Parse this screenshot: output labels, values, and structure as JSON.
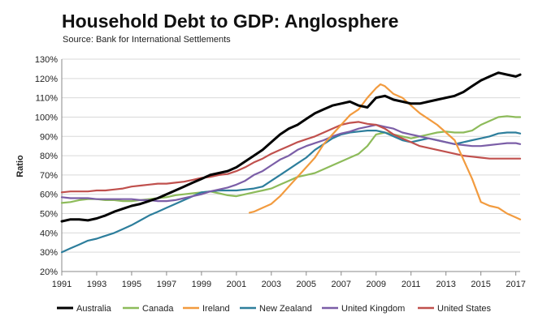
{
  "chart_data": {
    "type": "line",
    "title": "Household Debt to GDP: Anglosphere",
    "subtitle": "Source: Bank for International Settlements",
    "xlabel": "",
    "ylabel": "Ratio",
    "xlim": [
      1991,
      2017.25
    ],
    "ylim": [
      20,
      130
    ],
    "x_ticks": [
      "1991",
      "1993",
      "1995",
      "1997",
      "1999",
      "2001",
      "2003",
      "2005",
      "2007",
      "2009",
      "2011",
      "2013",
      "2015",
      "2017"
    ],
    "y_ticks": [
      "20%",
      "30%",
      "40%",
      "50%",
      "60%",
      "70%",
      "80%",
      "90%",
      "100%",
      "110%",
      "120%",
      "130%"
    ],
    "grid": "horizontal",
    "legend_position": "bottom",
    "series": [
      {
        "name": "Australia",
        "color": "#000000",
        "x": [
          1991,
          1991.5,
          1992,
          1992.5,
          1993,
          1993.5,
          1994,
          1994.5,
          1995,
          1995.5,
          1996,
          1996.5,
          1997,
          1997.5,
          1998,
          1998.5,
          1999,
          1999.5,
          2000,
          2000.5,
          2001,
          2001.5,
          2002,
          2002.5,
          2003,
          2003.5,
          2004,
          2004.5,
          2005,
          2005.5,
          2006,
          2006.5,
          2007,
          2007.5,
          2008,
          2008.5,
          2009,
          2009.5,
          2010,
          2010.5,
          2011,
          2011.5,
          2012,
          2012.5,
          2013,
          2013.5,
          2014,
          2014.5,
          2015,
          2015.5,
          2016,
          2016.5,
          2017,
          2017.25
        ],
        "values": [
          46,
          47,
          47,
          46.5,
          47.5,
          49,
          51,
          52.5,
          54,
          55,
          56.5,
          58,
          60,
          62,
          64,
          66,
          68,
          70,
          71,
          72,
          74,
          77,
          80,
          83,
          87,
          91,
          94,
          96,
          99,
          102,
          104,
          106,
          107,
          108,
          106,
          105,
          110,
          111,
          109,
          108,
          107,
          107,
          108,
          109,
          110,
          111,
          113,
          116,
          119,
          121,
          123,
          122,
          121,
          122
        ]
      },
      {
        "name": "Canada",
        "color": "#8dbb5a",
        "x": [
          1991,
          1991.5,
          1992,
          1992.5,
          1993,
          1993.5,
          1994,
          1994.5,
          1995,
          1995.5,
          1996,
          1996.5,
          1997,
          1997.5,
          1998,
          1998.5,
          1999,
          1999.5,
          2000,
          2000.5,
          2001,
          2001.5,
          2002,
          2002.5,
          2003,
          2003.5,
          2004,
          2004.5,
          2005,
          2005.5,
          2006,
          2006.5,
          2007,
          2007.5,
          2008,
          2008.5,
          2009,
          2009.5,
          2010,
          2010.5,
          2011,
          2011.5,
          2012,
          2012.5,
          2013,
          2013.5,
          2014,
          2014.5,
          2015,
          2015.5,
          2016,
          2016.5,
          2017,
          2017.25
        ],
        "values": [
          55.5,
          56,
          57,
          57.5,
          57.5,
          57,
          57,
          56.5,
          56.5,
          57,
          57.5,
          58,
          58.5,
          59.5,
          60,
          60.5,
          61,
          61.5,
          60.5,
          59.5,
          59,
          60,
          61,
          62,
          63,
          65,
          67,
          69,
          70,
          71,
          73,
          75,
          77,
          79,
          81,
          85,
          91,
          92,
          91,
          90,
          89,
          90,
          91,
          92,
          92.5,
          92,
          92,
          93,
          96,
          98,
          100,
          100.5,
          100,
          100
        ]
      },
      {
        "name": "Ireland",
        "color": "#f29b3f",
        "x": [
          2001.75,
          2002,
          2002.5,
          2003,
          2003.5,
          2004,
          2004.5,
          2005,
          2005.5,
          2006,
          2006.5,
          2007,
          2007.5,
          2008,
          2008.5,
          2009,
          2009.25,
          2009.5,
          2010,
          2010.5,
          2011,
          2011.5,
          2012,
          2012.5,
          2013,
          2013.5,
          2014,
          2014.5,
          2015,
          2015.5,
          2016,
          2016.5,
          2017,
          2017.25
        ],
        "values": [
          50.5,
          51,
          53,
          55,
          59,
          64,
          69,
          74,
          79,
          86,
          91,
          96,
          101,
          104,
          110,
          115,
          117,
          116,
          112,
          110,
          106,
          102,
          99,
          96,
          92,
          88,
          78,
          68,
          56,
          54,
          53,
          50,
          48,
          47
        ]
      },
      {
        "name": "New Zealand",
        "color": "#2d7e9c",
        "x": [
          1991,
          1991.5,
          1992,
          1992.5,
          1993,
          1993.5,
          1994,
          1994.5,
          1995,
          1995.5,
          1996,
          1996.5,
          1997,
          1997.5,
          1998,
          1998.5,
          1999,
          1999.5,
          2000,
          2000.5,
          2001,
          2001.5,
          2002,
          2002.5,
          2003,
          2003.5,
          2004,
          2004.5,
          2005,
          2005.5,
          2006,
          2006.5,
          2007,
          2007.5,
          2008,
          2008.5,
          2009,
          2009.5,
          2010,
          2010.5,
          2011,
          2011.5,
          2012,
          2012.5,
          2013,
          2013.5,
          2014,
          2014.5,
          2015,
          2015.5,
          2016,
          2016.5,
          2017,
          2017.25
        ],
        "values": [
          30,
          32,
          34,
          36,
          37,
          38.5,
          40,
          42,
          44,
          46.5,
          49,
          51,
          53,
          55,
          57,
          59,
          61,
          61.5,
          62,
          62,
          62,
          62.5,
          63,
          64,
          67,
          70,
          73,
          76,
          79,
          83,
          86,
          89,
          91,
          92,
          92.5,
          93,
          93,
          92,
          90,
          88,
          87,
          88,
          89,
          88,
          87,
          86,
          87,
          88,
          89,
          90,
          91.5,
          92,
          92,
          91.5
        ]
      },
      {
        "name": "United Kingdom",
        "color": "#7b5ea7",
        "x": [
          1991,
          1991.5,
          1992,
          1992.5,
          1993,
          1993.5,
          1994,
          1994.5,
          1995,
          1995.5,
          1996,
          1996.5,
          1997,
          1997.5,
          1998,
          1998.5,
          1999,
          1999.5,
          2000,
          2000.5,
          2001,
          2001.5,
          2002,
          2002.5,
          2003,
          2003.5,
          2004,
          2004.5,
          2005,
          2005.5,
          2006,
          2006.5,
          2007,
          2007.5,
          2008,
          2008.5,
          2009,
          2009.5,
          2010,
          2010.5,
          2011,
          2011.5,
          2012,
          2012.5,
          2013,
          2013.5,
          2014,
          2014.5,
          2015,
          2015.5,
          2016,
          2016.5,
          2017,
          2017.25
        ],
        "values": [
          58.5,
          58,
          58,
          58,
          57.5,
          57.5,
          57.5,
          57.5,
          57.5,
          57,
          57,
          56.5,
          56.5,
          57,
          58,
          59,
          60,
          61.5,
          62.5,
          63.5,
          65,
          67,
          70,
          72,
          75,
          78,
          80,
          83,
          85,
          86.5,
          88,
          90,
          91.5,
          92.5,
          94,
          95,
          96,
          95,
          94,
          92,
          91,
          90,
          89,
          88,
          87,
          86,
          85.5,
          85,
          85,
          85.5,
          86,
          86.5,
          86.5,
          86
        ]
      },
      {
        "name": "United States",
        "color": "#c0504d",
        "x": [
          1991,
          1991.5,
          1992,
          1992.5,
          1993,
          1993.5,
          1994,
          1994.5,
          1995,
          1995.5,
          1996,
          1996.5,
          1997,
          1997.5,
          1998,
          1998.5,
          1999,
          1999.5,
          2000,
          2000.5,
          2001,
          2001.5,
          2002,
          2002.5,
          2003,
          2003.5,
          2004,
          2004.5,
          2005,
          2005.5,
          2006,
          2006.5,
          2007,
          2007.5,
          2008,
          2008.5,
          2009,
          2009.5,
          2010,
          2010.5,
          2011,
          2011.5,
          2012,
          2012.5,
          2013,
          2013.5,
          2014,
          2014.5,
          2015,
          2015.5,
          2016,
          2016.5,
          2017,
          2017.25
        ],
        "values": [
          61,
          61.5,
          61.5,
          61.5,
          62,
          62,
          62.5,
          63,
          64,
          64.5,
          65,
          65.5,
          65.5,
          66,
          66.5,
          67.5,
          68.5,
          69,
          70,
          70.5,
          72,
          74,
          76.5,
          78.5,
          81,
          83,
          85,
          87,
          88.5,
          90,
          92,
          94,
          96,
          97,
          97.5,
          96.5,
          96,
          94,
          91,
          89,
          87,
          85,
          84,
          83,
          82,
          81,
          80,
          79.5,
          79,
          78.5,
          78.5,
          78.5,
          78.5,
          78.5
        ]
      }
    ]
  }
}
